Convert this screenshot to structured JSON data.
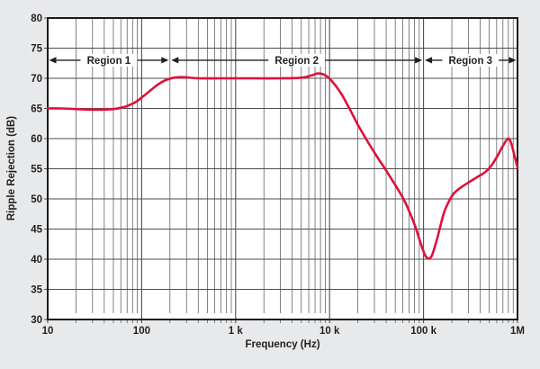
{
  "chart_data": {
    "type": "line",
    "title": "",
    "xlabel": "Frequency (Hz)",
    "ylabel": "Ripple Rejection (dB)",
    "x_scale": "log",
    "xlim": [
      10,
      1000000
    ],
    "ylim": [
      30,
      80
    ],
    "grid": true,
    "x_ticks": [
      {
        "value": 10,
        "label": "10"
      },
      {
        "value": 100,
        "label": "100"
      },
      {
        "value": 1000,
        "label": "1 k"
      },
      {
        "value": 10000,
        "label": "10 k"
      },
      {
        "value": 100000,
        "label": "100 k"
      },
      {
        "value": 1000000,
        "label": "1M"
      }
    ],
    "y_ticks": [
      {
        "value": 30,
        "label": "30"
      },
      {
        "value": 35,
        "label": "35"
      },
      {
        "value": 40,
        "label": "40"
      },
      {
        "value": 45,
        "label": "45"
      },
      {
        "value": 50,
        "label": "50"
      },
      {
        "value": 55,
        "label": "55"
      },
      {
        "value": 60,
        "label": "60"
      },
      {
        "value": 65,
        "label": "65"
      },
      {
        "value": 70,
        "label": "70"
      },
      {
        "value": 75,
        "label": "75"
      },
      {
        "value": 80,
        "label": "80"
      }
    ],
    "series": [
      {
        "name": "Ripple Rejection",
        "color": "#e0103a",
        "points": [
          [
            10,
            65.0
          ],
          [
            14,
            65.0
          ],
          [
            20,
            64.9
          ],
          [
            28,
            64.8
          ],
          [
            40,
            64.8
          ],
          [
            50,
            64.9
          ],
          [
            60,
            65.1
          ],
          [
            70,
            65.4
          ],
          [
            85,
            66.0
          ],
          [
            100,
            66.8
          ],
          [
            120,
            67.8
          ],
          [
            150,
            69.0
          ],
          [
            180,
            69.7
          ],
          [
            220,
            70.1
          ],
          [
            280,
            70.2
          ],
          [
            400,
            70.0
          ],
          [
            700,
            70.0
          ],
          [
            1500,
            70.0
          ],
          [
            3000,
            70.0
          ],
          [
            5000,
            70.1
          ],
          [
            6500,
            70.5
          ],
          [
            7500,
            70.8
          ],
          [
            9000,
            70.5
          ],
          [
            10500,
            69.6
          ],
          [
            13000,
            67.7
          ],
          [
            16000,
            65.2
          ],
          [
            20000,
            62.3
          ],
          [
            25000,
            59.7
          ],
          [
            32000,
            57.0
          ],
          [
            40000,
            54.7
          ],
          [
            50000,
            52.3
          ],
          [
            63000,
            49.6
          ],
          [
            80000,
            45.8
          ],
          [
            92000,
            42.9
          ],
          [
            103000,
            40.8
          ],
          [
            112000,
            40.1
          ],
          [
            122000,
            40.5
          ],
          [
            135000,
            42.6
          ],
          [
            150000,
            45.3
          ],
          [
            165000,
            47.7
          ],
          [
            185000,
            49.5
          ],
          [
            210000,
            50.9
          ],
          [
            250000,
            51.9
          ],
          [
            300000,
            52.7
          ],
          [
            380000,
            53.7
          ],
          [
            450000,
            54.4
          ],
          [
            520000,
            55.4
          ],
          [
            600000,
            56.9
          ],
          [
            700000,
            58.8
          ],
          [
            790000,
            60.0
          ],
          [
            850000,
            59.4
          ],
          [
            920000,
            57.4
          ],
          [
            1000000,
            55.2
          ]
        ]
      }
    ],
    "annotations": {
      "level_db": 73,
      "regions": [
        {
          "label": "Region 1",
          "from": 10,
          "to": 200
        },
        {
          "label": "Region 2",
          "from": 200,
          "to": 100000
        },
        {
          "label": "Region 3",
          "from": 100000,
          "to": 1000000
        }
      ]
    },
    "colors": {
      "page_background": "#e8e9ea",
      "plot_background": "#ffffff",
      "grid": "#4d4e50",
      "frame": "#1a1a1a",
      "curve": "#e0103a",
      "text": "#231f20"
    }
  }
}
